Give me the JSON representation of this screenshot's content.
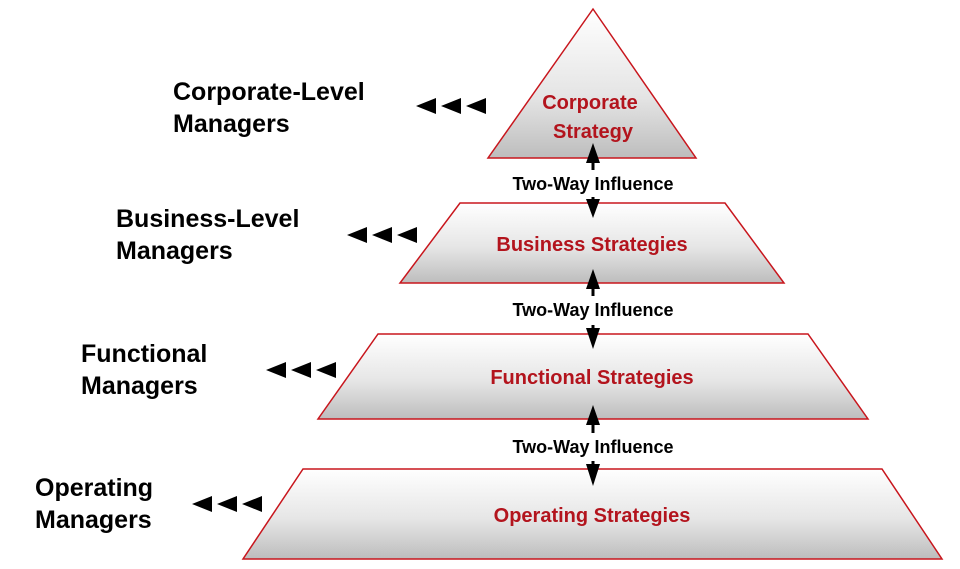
{
  "colors": {
    "tier_outline": "#c8161d",
    "tier_label": "#b3141d",
    "arrows": "#000000"
  },
  "managers": [
    {
      "label": "Corporate-Level\nManagers"
    },
    {
      "label": "Business-Level\nManagers"
    },
    {
      "label": "Functional\nManagers"
    },
    {
      "label": "Operating\nManagers"
    }
  ],
  "tiers": [
    {
      "line1": "Corporate",
      "line2": "Strategy"
    },
    {
      "line1": "Business Strategies"
    },
    {
      "line1": "Functional Strategies"
    },
    {
      "line1": "Operating Strategies"
    }
  ],
  "influence": [
    {
      "label": "Two-Way Influence"
    },
    {
      "label": "Two-Way Influence"
    },
    {
      "label": "Two-Way Influence"
    }
  ],
  "icons": {
    "pointer": "triple-left-arrow-icon",
    "connector": "double-headed-vertical-arrow-icon"
  }
}
